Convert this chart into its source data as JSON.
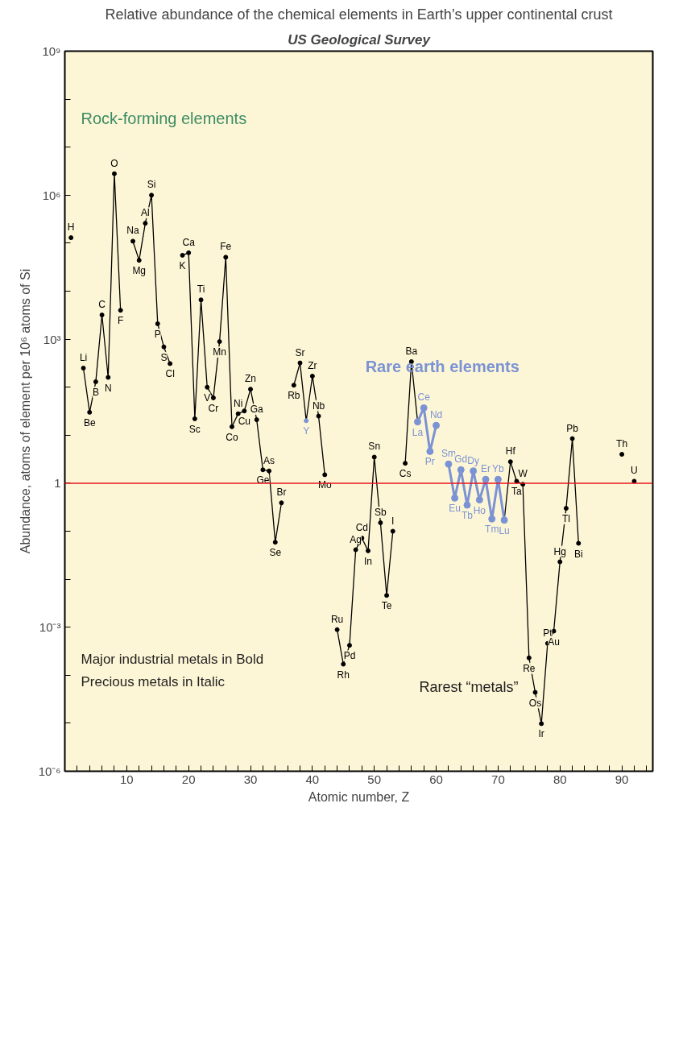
{
  "chart_data": {
    "type": "line",
    "title": "Relative abundance of the chemical elements in Earth’s upper continental crust",
    "subtitle": "US Geological Survey",
    "xlabel": "Atomic number, Z",
    "ylabel": "Abundance, atoms of element per 10⁶ atoms of Si",
    "log": "y",
    "marker": "circle",
    "line_style": "solid",
    "xlim": [
      0,
      95
    ],
    "ylim": [
      1e-06,
      1000000000
    ],
    "xticks": [
      {
        "value": 2,
        "label": null
      },
      {
        "value": 4,
        "label": null
      },
      {
        "value": 6,
        "label": null
      },
      {
        "value": 8,
        "label": null
      },
      10,
      {
        "value": 12,
        "label": null
      },
      {
        "value": 14,
        "label": null
      },
      {
        "value": 16,
        "label": null
      },
      {
        "value": 18,
        "label": null
      },
      20,
      {
        "value": 22,
        "label": null
      },
      {
        "value": 24,
        "label": null
      },
      {
        "value": 26,
        "label": null
      },
      {
        "value": 28,
        "label": null
      },
      30,
      {
        "value": 32,
        "label": null
      },
      {
        "value": 34,
        "label": null
      },
      {
        "value": 36,
        "label": null
      },
      {
        "value": 38,
        "label": null
      },
      40,
      {
        "value": 42,
        "label": null
      },
      {
        "value": 44,
        "label": null
      },
      {
        "value": 46,
        "label": null
      },
      {
        "value": 48,
        "label": null
      },
      50,
      {
        "value": 52,
        "label": null
      },
      {
        "value": 54,
        "label": null
      },
      {
        "value": 56,
        "label": null
      },
      {
        "value": 58,
        "label": null
      },
      60,
      {
        "value": 62,
        "label": null
      },
      {
        "value": 64,
        "label": null
      },
      {
        "value": 66,
        "label": null
      },
      {
        "value": 68,
        "label": null
      },
      70,
      {
        "value": 72,
        "label": null
      },
      {
        "value": 74,
        "label": null
      },
      {
        "value": 76,
        "label": null
      },
      {
        "value": 78,
        "label": null
      },
      80,
      {
        "value": 82,
        "label": null
      },
      {
        "value": 84,
        "label": null
      },
      {
        "value": 86,
        "label": null
      },
      {
        "value": 88,
        "label": null
      },
      90,
      {
        "value": 92,
        "label": null
      },
      {
        "value": 94,
        "label": null
      }
    ],
    "yticks": [
      {
        "value": 1e-06,
        "label": "10⁻⁶"
      },
      {
        "value": 1e-05,
        "label": null
      },
      {
        "value": 0.0001,
        "label": null
      },
      {
        "value": 0.001,
        "label": "10⁻³"
      },
      {
        "value": 0.01,
        "label": null
      },
      {
        "value": 0.1,
        "label": null
      },
      1,
      {
        "value": 10,
        "label": null
      },
      {
        "value": 100,
        "label": null
      },
      {
        "value": 1000,
        "label": "10³"
      },
      {
        "value": 10000,
        "label": null
      },
      {
        "value": 100000,
        "label": null
      },
      {
        "value": 1000000,
        "label": "10⁶"
      },
      {
        "value": 10000000,
        "label": null
      },
      {
        "value": 100000000,
        "label": null
      },
      {
        "value": 1000000000,
        "label": "10⁹"
      }
    ],
    "ref_lines": [
      {
        "axis": "y",
        "value": 1,
        "color": "#e8141e"
      }
    ],
    "series": [
      {
        "color": "#000000",
        "x": [
          1,
          2,
          3,
          4,
          5,
          6,
          7,
          8,
          9,
          10,
          11,
          12,
          13,
          14,
          15,
          16,
          17,
          18,
          19,
          20,
          21,
          22,
          23,
          24,
          25,
          26,
          27,
          28,
          29,
          30,
          31,
          32,
          33,
          34,
          35,
          36,
          37,
          38,
          39,
          40,
          41,
          42,
          43,
          44,
          45,
          46,
          47,
          48,
          49,
          50,
          51,
          52,
          53,
          54,
          55,
          56,
          57,
          58,
          71,
          72,
          73,
          74,
          75,
          76,
          77,
          78,
          79,
          80,
          81,
          82,
          83,
          84,
          90,
          91,
          92
        ],
        "values": [
          130000,
          null,
          250,
          30,
          130,
          3200,
          160,
          2800000,
          4000,
          null,
          110000,
          44000,
          260000,
          1000000,
          2100,
          690,
          310,
          null,
          56000,
          63000,
          22,
          6600,
          100,
          60,
          890,
          51000,
          15,
          28,
          32,
          91,
          21,
          1.9,
          1.8,
          0.059,
          0.39,
          null,
          110,
          320,
          20,
          170,
          25,
          1.5,
          null,
          0.00089,
          0.00017,
          0.00042,
          0.041,
          0.072,
          0.039,
          3.5,
          0.15,
          0.0046,
          0.1,
          null,
          2.6,
          340,
          19,
          null,
          0.17,
          2.8,
          1.1,
          0.95,
          0.00023,
          4.4e-05,
          9.8e-06,
          0.00046,
          0.00083,
          0.023,
          0.3,
          8.5,
          0.056,
          null,
          4.0,
          null,
          1.1
        ],
        "value_labels": [
          "H",
          null,
          "Li",
          "Be",
          "B",
          "C",
          "N",
          "O",
          "F",
          null,
          "Na",
          "Mg",
          "Al",
          "Si",
          "P",
          "S",
          "Cl",
          null,
          "K",
          "Ca",
          "Sc",
          "Ti",
          "V",
          "Cr",
          "Mn",
          "Fe",
          "Co",
          "Ni",
          "Cu",
          "Zn",
          "Ga",
          "Ge",
          "As",
          "Se",
          "Br",
          null,
          "Rb",
          "Sr",
          "Y",
          "Zr",
          "Nb",
          "Mo",
          null,
          "Ru",
          "Rh",
          "Pd",
          "Ag",
          "Cd",
          "In",
          "Sn",
          "Sb",
          "Te",
          "I",
          null,
          "Cs",
          "Ba",
          null,
          null,
          null,
          "Hf",
          "Ta",
          "W",
          "Re",
          "Os",
          "Ir",
          "Pt",
          "Au",
          "Hg",
          "Tl",
          "Pb",
          "Bi",
          null,
          "Th",
          null,
          "U"
        ],
        "colors": [
          "#000000",
          "#000000",
          "#000000",
          "#000000",
          "#000000",
          "#000000",
          "#000000",
          "#000000",
          "#000000",
          "#000000",
          "#000000",
          "#000000",
          "#000000",
          "#000000",
          "#000000",
          "#000000",
          "#000000",
          "#000000",
          "#000000",
          "#000000",
          "#000000",
          "#000000",
          "#000000",
          "#000000",
          "#000000",
          "#000000",
          "#000000",
          "#000000",
          "#000000",
          "#000000",
          "#000000",
          "#000000",
          "#000000",
          "#000000",
          "#000000",
          "#000000",
          "#000000",
          "#000000",
          "#7b93d4",
          "#000000",
          "#000000",
          "#000000",
          "#000000",
          "#000000",
          "#000000",
          "#000000",
          "#000000",
          "#000000",
          "#000000",
          "#000000",
          "#000000",
          "#000000",
          "#000000",
          "#000000",
          "#000000",
          "#000000",
          "#7b93d4",
          "#000000",
          "#7b93d4",
          "#000000",
          "#000000",
          "#000000",
          "#000000",
          "#000000",
          "#000000",
          "#000000",
          "#000000",
          "#000000",
          "#000000",
          "#000000",
          "#000000",
          "#000000",
          "#000000",
          "#000000",
          "#000000"
        ]
      },
      {
        "name": "Rare earth elements",
        "color": "#7b93d4",
        "x": [
          57,
          58,
          59,
          60,
          61,
          62,
          63,
          64,
          65,
          66,
          67,
          68,
          69,
          70,
          71
        ],
        "values": [
          19,
          37,
          4.6,
          16,
          null,
          2.5,
          0.49,
          1.9,
          0.35,
          1.8,
          0.45,
          1.2,
          0.18,
          1.2,
          0.17
        ],
        "value_labels": [
          "La",
          "Ce",
          "Pr",
          "Nd",
          null,
          "Sm",
          "Eu",
          "Gd",
          "Tb",
          "Dy",
          "Ho",
          "Er",
          "Tm",
          "Yb",
          "Lu"
        ]
      }
    ],
    "annotations": [
      "Rock-forming elements",
      "Rarest “metals”",
      "Major industrial metals in Bold",
      "Precious metals in Italic"
    ]
  }
}
